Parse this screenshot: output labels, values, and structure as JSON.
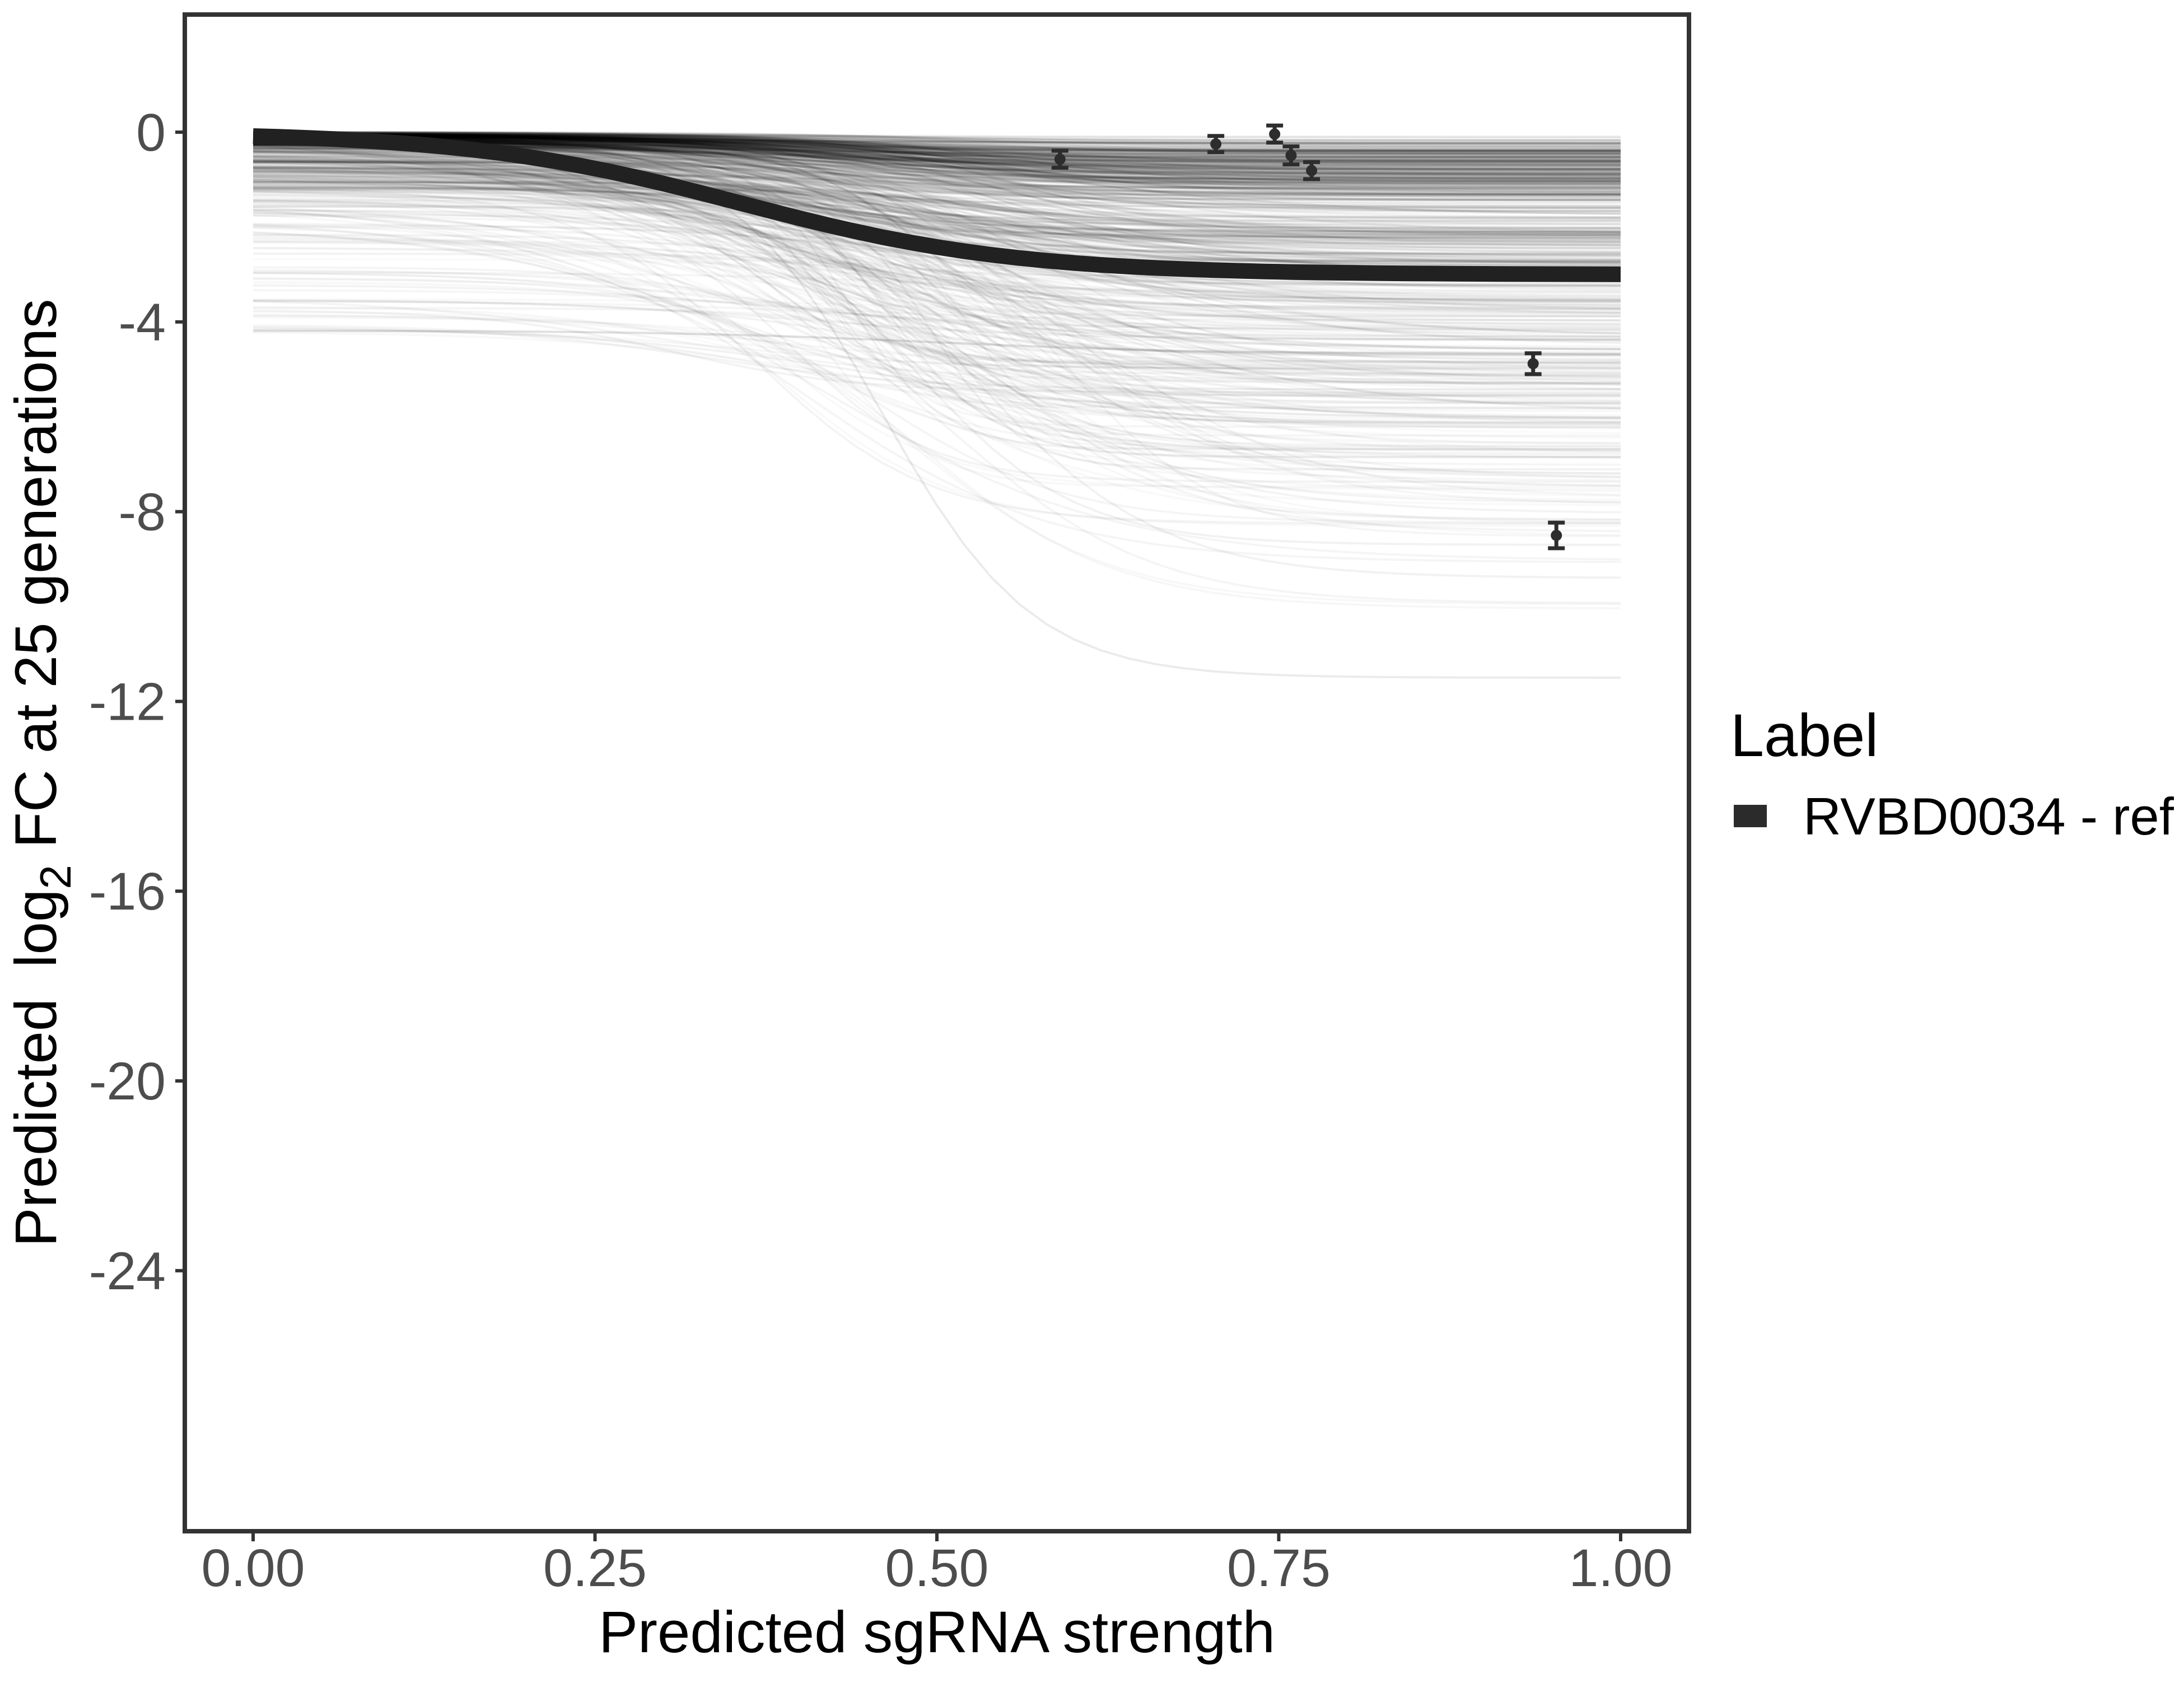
{
  "chart_data": {
    "type": "line",
    "title": "",
    "x_axis": {
      "label": "Predicted sgRNA strength",
      "range": [
        0,
        1
      ],
      "ticks": [
        {
          "v": 0.0,
          "label": "0.00"
        },
        {
          "v": 0.25,
          "label": "0.25"
        },
        {
          "v": 0.5,
          "label": "0.50"
        },
        {
          "v": 0.75,
          "label": "0.75"
        },
        {
          "v": 1.0,
          "label": "1.00"
        }
      ]
    },
    "y_axis": {
      "label": "Predicted log2 FC at 25 generations",
      "label_word1": "Predicted",
      "label_word2": "log",
      "label_sub": "2",
      "label_rest": "FC at 25 generations",
      "range_shown": [
        -29.5,
        2.5
      ],
      "ticks": [
        {
          "v": 0,
          "label": "0"
        },
        {
          "v": -4,
          "label": "-4"
        },
        {
          "v": -8,
          "label": "-8"
        },
        {
          "v": -12,
          "label": "-12"
        },
        {
          "v": -16,
          "label": "-16"
        },
        {
          "v": -20,
          "label": "-20"
        },
        {
          "v": -24,
          "label": "-24"
        }
      ]
    },
    "reference_curve": {
      "name": "RVBD0034 - ref",
      "color": "#212121",
      "stroke_width": 28,
      "model": "logistic",
      "plateau": -3.0,
      "midpoint": 0.357,
      "scale": 0.1,
      "x_start": 0,
      "x_end": 1
    },
    "points": [
      {
        "x": 0.59,
        "y": -0.57,
        "err": 0.18
      },
      {
        "x": 0.704,
        "y": -0.25,
        "err": 0.17
      },
      {
        "x": 0.747,
        "y": -0.04,
        "err": 0.18
      },
      {
        "x": 0.759,
        "y": -0.49,
        "err": 0.19
      },
      {
        "x": 0.774,
        "y": -0.81,
        "err": 0.18
      },
      {
        "x": 0.936,
        "y": -4.88,
        "err": 0.22
      },
      {
        "x": 0.953,
        "y": -8.5,
        "err": 0.27
      }
    ],
    "points_color": "#2d2d2d",
    "ensemble": {
      "description": "unlabeled grey ensemble of predicted sigmoidal depletion curves, x 0 to 1, starting between 0 and -4.3 and plateauing mostly between -0.3 and -8, rare outlier to -11.5",
      "color": "#000000",
      "stroke_width": 4,
      "seed": 20240817,
      "cohorts": [
        {
          "n": 150,
          "b": [
            -0.28,
            0,
            1
          ],
          "d": [
            0.05,
            1.2
          ],
          "m": [
            0.33,
            0.55
          ],
          "sc": [
            0.05,
            0.1
          ],
          "a": [
            0.045,
            0.1
          ]
        },
        {
          "n": 150,
          "b": [
            -1.2,
            0,
            2
          ],
          "d": [
            0.3,
            2.6
          ],
          "m": [
            0.3,
            0.58
          ],
          "sc": [
            0.05,
            0.12
          ],
          "a": [
            0.035,
            0.085
          ]
        },
        {
          "n": 95,
          "b": [
            -2.2,
            0,
            2.5
          ],
          "d": [
            2.5,
            5.0
          ],
          "m": [
            0.32,
            0.58
          ],
          "sc": [
            0.06,
            0.12
          ],
          "a": [
            0.025,
            0.06
          ]
        },
        {
          "n": 50,
          "b": [
            -3.2,
            0,
            3
          ],
          "d": [
            5.0,
            7.3
          ],
          "m": [
            0.34,
            0.56
          ],
          "sc": [
            0.06,
            0.11
          ],
          "a": [
            0.02,
            0.045
          ]
        },
        {
          "n": 45,
          "b": [
            -4.3,
            -1.2,
            1
          ],
          "d": [
            0.4,
            2.5
          ],
          "m": [
            0.3,
            0.6
          ],
          "sc": [
            0.06,
            0.12
          ],
          "a": [
            0.02,
            0.05
          ]
        },
        {
          "n": 28,
          "b": [
            -1.8,
            -0.2,
            1
          ],
          "d": [
            3.5,
            6.5
          ],
          "m": [
            0.38,
            0.52
          ],
          "sc": [
            0.03,
            0.055
          ],
          "a": [
            0.025,
            0.055
          ]
        },
        {
          "n": 10,
          "b": [
            -0.8,
            0,
            1
          ],
          "d": [
            6.8,
            8.0
          ],
          "m": [
            0.4,
            0.6
          ],
          "sc": [
            0.05,
            0.09
          ],
          "a": [
            0.02,
            0.04
          ]
        }
      ],
      "specials": [
        {
          "b": -4.18,
          "d": 0.5,
          "m": 0.5,
          "sc": 0.1,
          "a": 0.12
        },
        {
          "b": -0.35,
          "d": 11.15,
          "m": 0.46,
          "sc": 0.055,
          "a": 0.08
        },
        {
          "b": -0.5,
          "d": 8.9,
          "m": 0.52,
          "sc": 0.07,
          "a": 0.05
        },
        {
          "b": -1.1,
          "d": 7.6,
          "m": 0.48,
          "sc": 0.06,
          "a": 0.05
        }
      ]
    },
    "legend_position": "right",
    "grid": false
  },
  "legend": {
    "title": "Label",
    "entries": [
      {
        "label": "RVBD0034 - ref",
        "key_color": "#2b2b2b"
      }
    ]
  },
  "style": {
    "panel_border_color": "#333333",
    "tick_color": "#333333",
    "tick_label_color": "#4d4d4d",
    "background": "#ffffff"
  }
}
